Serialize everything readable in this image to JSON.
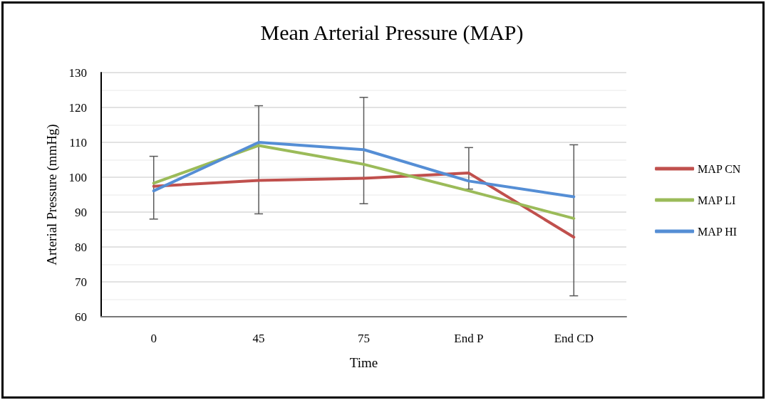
{
  "chart_data": {
    "type": "line",
    "title": "Mean Arterial Pressure (MAP)",
    "xlabel": "Time",
    "ylabel": "Arterial Pressure (mmHg)",
    "categories": [
      "0",
      "45",
      "75",
      "End P",
      "End CD"
    ],
    "series": [
      {
        "name": "MAP CN",
        "color": "#c0504d",
        "values": [
          97.4,
          99.1,
          99.7,
          101.2,
          82.8
        ],
        "errors": [
          [
            88.0,
            106.0
          ],
          [
            89.5,
            120.5
          ],
          [
            92.4,
            122.9
          ],
          [
            96.6,
            108.5
          ],
          [
            66.0,
            109.3
          ]
        ]
      },
      {
        "name": "MAP LI",
        "color": "#9bbb59",
        "values": [
          98.3,
          109.1,
          103.7,
          96.1,
          88.2
        ]
      },
      {
        "name": "MAP HI",
        "color": "#558ed5",
        "values": [
          96.1,
          110.0,
          107.9,
          98.9,
          94.4
        ]
      }
    ],
    "ylim": [
      60,
      130
    ],
    "yticks": [
      60,
      70,
      80,
      90,
      100,
      110,
      120,
      130
    ],
    "grid": "y",
    "legend": "right",
    "marker": "none",
    "line_style": "solid"
  }
}
